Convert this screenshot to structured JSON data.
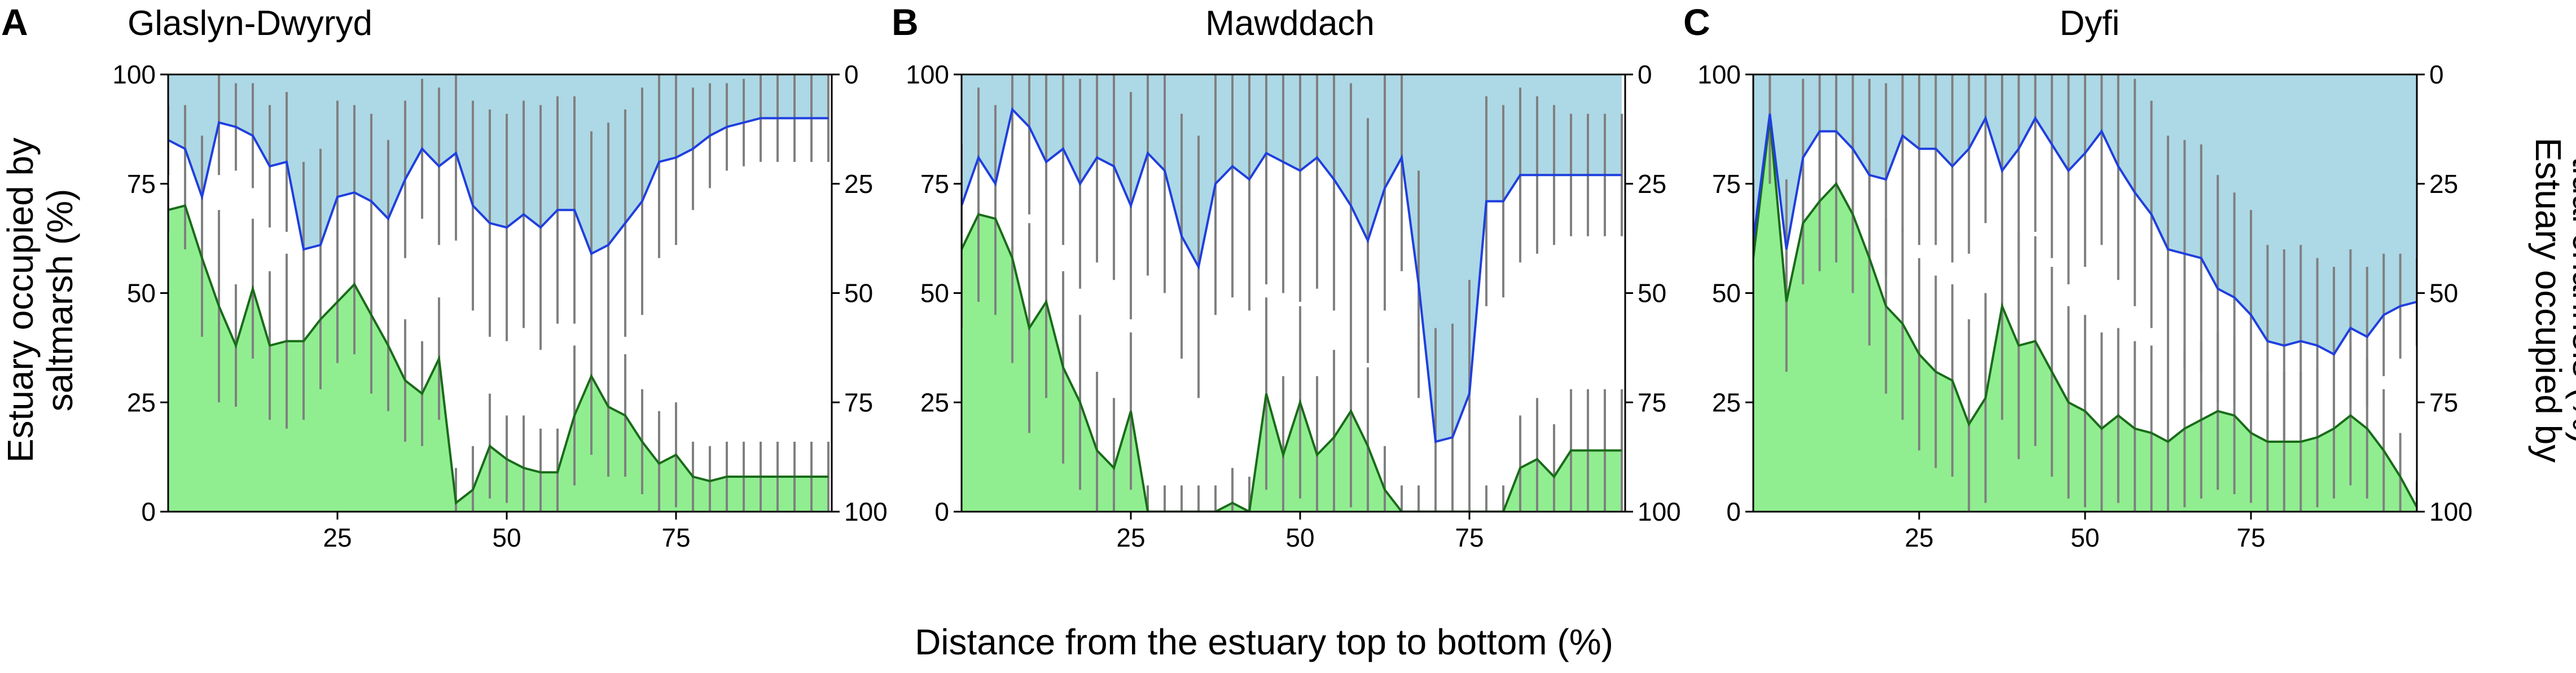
{
  "figure": {
    "xlabel": "Distance from the estuary top to bottom (%)",
    "ylabel_left": [
      "Estuary occupied by",
      "saltmarsh (%)"
    ],
    "ylabel_right": [
      "Estuary occupied by",
      "tidal channels (%)"
    ]
  },
  "colors": {
    "saltmarsh_fill": "#90ee90",
    "saltmarsh_line": "#1a6b1a",
    "channel_fill": "#add8e6",
    "channel_line": "#1f3fdd",
    "error_bar": "#808080",
    "axes": "#000000"
  },
  "chart_data": [
    {
      "type": "area",
      "panel": "A",
      "title": "Glaslyn-Dwyryd",
      "xlim": [
        0,
        98
      ],
      "ylim": [
        0,
        100
      ],
      "yticks": [
        0,
        25,
        50,
        75,
        100
      ],
      "xticks": [
        25,
        50,
        75
      ],
      "y2ticks": [
        0,
        25,
        50,
        75,
        100
      ],
      "y2_inverted": true,
      "grid": false,
      "x": [
        0,
        2.5,
        5,
        7.5,
        10,
        12.5,
        15,
        17.5,
        20,
        22.5,
        25,
        27.5,
        30,
        32.5,
        35,
        37.5,
        40,
        42.5,
        45,
        47.5,
        50,
        52.5,
        55,
        57.5,
        60,
        62.5,
        65,
        67.5,
        70,
        72.5,
        75,
        77.5,
        80,
        82.5,
        85,
        87.5,
        90,
        92.5,
        95,
        97.5
      ],
      "series": [
        {
          "role": "saltmarsh",
          "values": [
            69,
            70,
            58,
            47,
            38,
            51,
            38,
            39,
            39,
            44,
            48,
            52,
            45,
            38,
            30,
            27,
            35,
            2,
            5,
            15,
            12,
            10,
            9,
            9,
            22,
            31,
            24,
            22,
            16,
            11,
            13,
            8,
            7,
            8,
            8,
            8,
            8,
            8,
            8,
            8
          ],
          "error": [
            5,
            10,
            18,
            22,
            14,
            16,
            17,
            20,
            18,
            16,
            14,
            16,
            18,
            15,
            14,
            12,
            14,
            8,
            10,
            12,
            10,
            12,
            10,
            10,
            16,
            18,
            16,
            14,
            12,
            12,
            12,
            8,
            8,
            8,
            8,
            8,
            8,
            8,
            8,
            8
          ]
        },
        {
          "role": "tidal_channels",
          "values": [
            15,
            17,
            28,
            11,
            12,
            14,
            21,
            20,
            40,
            39,
            28,
            27,
            29,
            33,
            24,
            17,
            21,
            18,
            30,
            34,
            35,
            32,
            35,
            31,
            31,
            41,
            39,
            34,
            29,
            20,
            19,
            17,
            14,
            12,
            11,
            10,
            10,
            10,
            10,
            10
          ],
          "error": [
            8,
            10,
            14,
            12,
            10,
            12,
            14,
            16,
            20,
            22,
            22,
            20,
            20,
            18,
            18,
            16,
            18,
            20,
            24,
            26,
            26,
            26,
            28,
            26,
            26,
            28,
            28,
            26,
            26,
            22,
            20,
            14,
            12,
            10,
            10,
            10,
            10,
            10,
            10,
            10
          ]
        }
      ]
    },
    {
      "type": "area",
      "panel": "B",
      "title": "Mawddach",
      "xlim": [
        0,
        98
      ],
      "ylim": [
        0,
        100
      ],
      "yticks": [
        0,
        25,
        50,
        75,
        100
      ],
      "xticks": [
        25,
        50,
        75
      ],
      "y2ticks": [
        0,
        25,
        50,
        75,
        100
      ],
      "y2_inverted": true,
      "grid": false,
      "x": [
        0,
        2.5,
        5,
        7.5,
        10,
        12.5,
        15,
        17.5,
        20,
        22.5,
        25,
        27.5,
        30,
        32.5,
        35,
        37.5,
        40,
        42.5,
        45,
        47.5,
        50,
        52.5,
        55,
        57.5,
        60,
        62.5,
        65,
        67.5,
        70,
        72.5,
        75,
        77.5,
        80,
        82.5,
        85,
        87.5,
        90,
        92.5,
        95,
        97.5
      ],
      "series": [
        {
          "role": "saltmarsh",
          "values": [
            60,
            68,
            67,
            58,
            42,
            48,
            33,
            25,
            14,
            10,
            23,
            0,
            0,
            0,
            0,
            0,
            2,
            0,
            27,
            13,
            25,
            13,
            17,
            23,
            15,
            5,
            0,
            0,
            0,
            0,
            0,
            0,
            0,
            10,
            12,
            8,
            14,
            14,
            14,
            14
          ],
          "error": [
            18,
            20,
            22,
            24,
            24,
            22,
            22,
            20,
            18,
            16,
            18,
            6,
            6,
            6,
            6,
            6,
            8,
            8,
            22,
            18,
            22,
            18,
            20,
            22,
            18,
            10,
            6,
            6,
            6,
            6,
            6,
            6,
            6,
            12,
            14,
            12,
            14,
            14,
            14,
            14
          ]
        },
        {
          "role": "tidal_channels",
          "values": [
            30,
            19,
            25,
            8,
            12,
            20,
            17,
            25,
            19,
            21,
            30,
            18,
            22,
            37,
            44,
            25,
            21,
            24,
            18,
            20,
            22,
            19,
            24,
            30,
            38,
            26,
            19,
            48,
            84,
            83,
            73,
            29,
            29,
            23,
            23,
            23,
            23,
            23,
            23,
            23
          ],
          "error": [
            14,
            16,
            18,
            20,
            20,
            22,
            22,
            24,
            24,
            26,
            26,
            28,
            28,
            28,
            30,
            30,
            30,
            30,
            30,
            30,
            30,
            30,
            30,
            28,
            28,
            28,
            26,
            26,
            26,
            26,
            26,
            24,
            22,
            20,
            18,
            16,
            14,
            14,
            14,
            14
          ]
        }
      ]
    },
    {
      "type": "area",
      "panel": "C",
      "title": "Dyfi",
      "xlim": [
        0,
        100
      ],
      "ylim": [
        0,
        100
      ],
      "yticks": [
        0,
        25,
        50,
        75,
        100
      ],
      "xticks": [
        25,
        50,
        75
      ],
      "y2ticks": [
        0,
        25,
        50,
        75,
        100
      ],
      "y2_inverted": true,
      "grid": false,
      "x": [
        0,
        2.5,
        5,
        7.5,
        10,
        12.5,
        15,
        17.5,
        20,
        22.5,
        25,
        27.5,
        30,
        32.5,
        35,
        37.5,
        40,
        42.5,
        45,
        47.5,
        50,
        52.5,
        55,
        57.5,
        60,
        62.5,
        65,
        67.5,
        70,
        72.5,
        75,
        77.5,
        80,
        82.5,
        85,
        87.5,
        90,
        92.5,
        95,
        97.5,
        100
      ],
      "series": [
        {
          "role": "saltmarsh",
          "values": [
            58,
            90,
            48,
            66,
            71,
            75,
            68,
            58,
            47,
            43,
            36,
            32,
            30,
            20,
            26,
            47,
            38,
            39,
            32,
            25,
            23,
            19,
            22,
            19,
            18,
            16,
            19,
            21,
            23,
            22,
            18,
            16,
            16,
            16,
            17,
            19,
            22,
            19,
            14,
            8,
            1
          ],
          "error": [
            14,
            14,
            16,
            14,
            16,
            18,
            18,
            20,
            20,
            22,
            22,
            22,
            22,
            24,
            24,
            26,
            26,
            24,
            24,
            22,
            22,
            22,
            20,
            20,
            20,
            18,
            18,
            18,
            18,
            18,
            16,
            16,
            16,
            16,
            16,
            16,
            16,
            16,
            14,
            10,
            6
          ]
        },
        {
          "role": "tidal_channels",
          "values": [
            38,
            9,
            40,
            19,
            13,
            13,
            17,
            23,
            24,
            14,
            17,
            17,
            21,
            17,
            10,
            22,
            17,
            10,
            16,
            22,
            18,
            13,
            21,
            27,
            32,
            40,
            41,
            42,
            49,
            51,
            55,
            61,
            62,
            61,
            62,
            64,
            58,
            60,
            55,
            53,
            52
          ],
          "error": [
            14,
            16,
            16,
            18,
            18,
            20,
            20,
            22,
            22,
            22,
            22,
            22,
            22,
            24,
            24,
            26,
            26,
            26,
            26,
            26,
            26,
            26,
            26,
            26,
            26,
            26,
            26,
            26,
            26,
            24,
            24,
            22,
            22,
            22,
            20,
            20,
            18,
            16,
            14,
            12,
            10
          ]
        }
      ]
    }
  ]
}
